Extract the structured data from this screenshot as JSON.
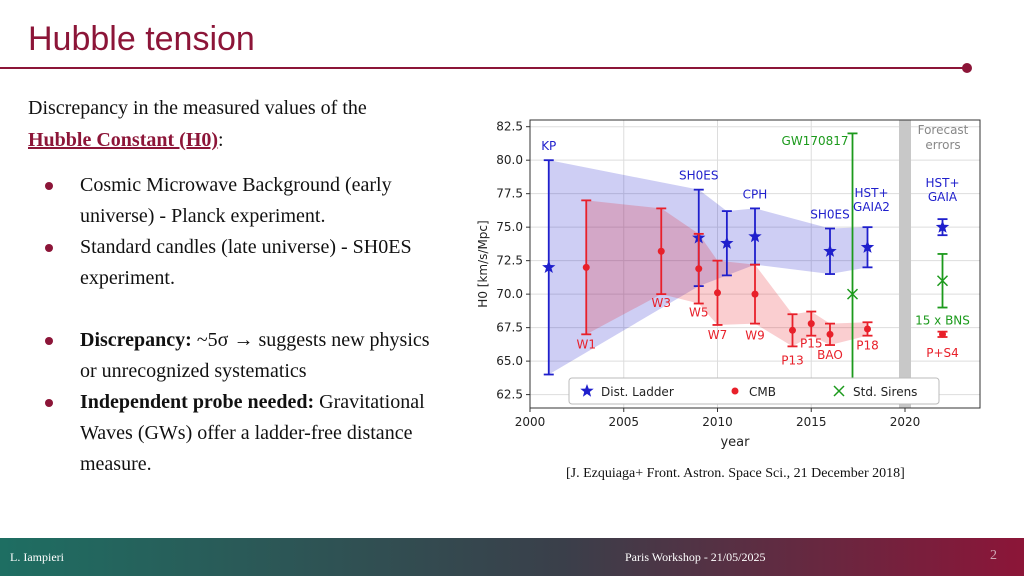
{
  "slide": {
    "title": "Hubble tension",
    "intro_text": "Discrepancy in the measured values of the",
    "intro_link": "Hubble Constant (H0)",
    "intro_colon": ":",
    "bullets": [
      {
        "bold": "",
        "text": "Cosmic Microwave Background (early universe) - Planck experiment."
      },
      {
        "bold": "",
        "text": "Standard candles (late universe) - SH0ES experiment."
      },
      {
        "bold": "Discrepancy:",
        "text": " ~5σ → suggests new physics or unrecognized systematics"
      },
      {
        "bold": "Independent probe needed:",
        "text": " Gravitational Waves (GWs) offer a ladder-free distance measure."
      }
    ],
    "caption": "[J. Ezquiaga+ Front. Astron. Space Sci., 21 December 2018]"
  },
  "footer": {
    "author": "L. Iampieri",
    "event": "Paris Workshop - 21/05/2025",
    "page_number": "2"
  },
  "colors": {
    "accent": "#8c1538",
    "ladder": "#1f1fcc",
    "cmb": "#e8202a",
    "sirens": "#1c9a1c"
  },
  "chart_data": {
    "type": "scatter",
    "title": "",
    "xlabel": "year",
    "ylabel": "H0 [km/s/Mpc]",
    "xlim": [
      2000,
      2024
    ],
    "ylim": [
      61.5,
      83
    ],
    "xticks": [
      2000,
      2005,
      2010,
      2015,
      2020
    ],
    "yticks": [
      62.5,
      65.0,
      67.5,
      70.0,
      72.5,
      75.0,
      77.5,
      80.0,
      82.5
    ],
    "grid": true,
    "legend": {
      "position": "bottom",
      "entries": [
        "Dist. Ladder",
        "CMB",
        "Std. Sirens"
      ]
    },
    "series": [
      {
        "name": "Dist. Ladder",
        "marker": "star",
        "points": [
          {
            "label": "KP",
            "x": 2001,
            "y": 72.0,
            "lo": 64.0,
            "hi": 80.0
          },
          {
            "label": "SH0ES",
            "x": 2009,
            "y": 74.2,
            "lo": 70.6,
            "hi": 77.8
          },
          {
            "label": "",
            "x": 2010.5,
            "y": 73.8,
            "lo": 71.4,
            "hi": 76.2
          },
          {
            "label": "CPH",
            "x": 2012,
            "y": 74.3,
            "lo": 72.2,
            "hi": 76.4
          },
          {
            "label": "SH0ES",
            "x": 2016,
            "y": 73.2,
            "lo": 71.5,
            "hi": 74.9
          },
          {
            "label": "HST+ GAIA2",
            "x": 2018,
            "y": 73.5,
            "lo": 72.0,
            "hi": 75.0
          }
        ],
        "forecast": {
          "label": "HST+ GAIA",
          "x": 2022,
          "y": 75.0,
          "lo": 74.4,
          "hi": 75.6
        }
      },
      {
        "name": "CMB",
        "marker": "circle",
        "points": [
          {
            "label": "W1",
            "x": 2003,
            "y": 72.0,
            "lo": 67.0,
            "hi": 77.0
          },
          {
            "label": "W3",
            "x": 2007,
            "y": 73.2,
            "lo": 70.0,
            "hi": 76.4
          },
          {
            "label": "W5",
            "x": 2009,
            "y": 71.9,
            "lo": 69.3,
            "hi": 74.5
          },
          {
            "label": "W7",
            "x": 2010,
            "y": 70.1,
            "lo": 67.7,
            "hi": 72.5
          },
          {
            "label": "W9",
            "x": 2012,
            "y": 70.0,
            "lo": 67.8,
            "hi": 72.2
          },
          {
            "label": "P13",
            "x": 2014,
            "y": 67.3,
            "lo": 66.1,
            "hi": 68.5
          },
          {
            "label": "P15",
            "x": 2015,
            "y": 67.8,
            "lo": 66.9,
            "hi": 68.7
          },
          {
            "label": "BAO",
            "x": 2016,
            "y": 67.0,
            "lo": 66.2,
            "hi": 67.8
          },
          {
            "label": "P18",
            "x": 2018,
            "y": 67.4,
            "lo": 66.9,
            "hi": 67.9
          }
        ],
        "forecast": {
          "label": "P+S4",
          "x": 2022,
          "y": 67.0,
          "lo": 66.8,
          "hi": 67.2
        }
      },
      {
        "name": "Std. Sirens",
        "marker": "x",
        "points": [
          {
            "label": "GW170817",
            "x": 2017.2,
            "y": 70.0,
            "lo": 62.0,
            "hi": 82.0
          }
        ],
        "forecast": {
          "label": "15 x BNS",
          "x": 2022,
          "y": 71.0,
          "lo": 69.0,
          "hi": 73.0
        }
      }
    ],
    "annotations": {
      "forecast_label": "Forecast errors",
      "forecast_band_year": 2020
    }
  }
}
